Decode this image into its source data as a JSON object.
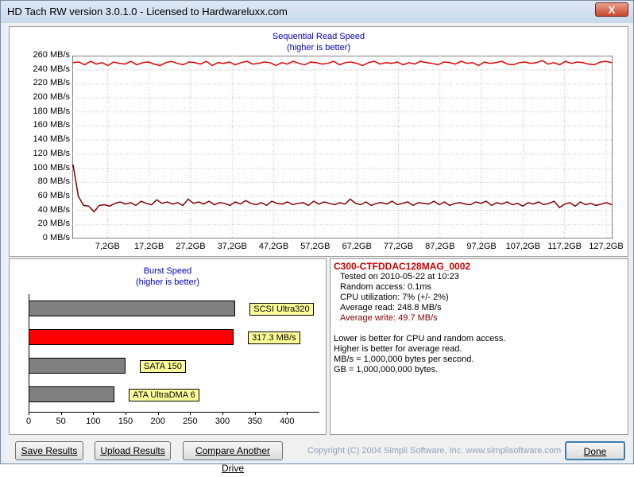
{
  "window": {
    "title": "HD Tach RW version 3.0.1.0 - Licensed to Hardwareluxx.com",
    "close_label": "X"
  },
  "seq_chart": {
    "title": "Sequential Read Speed",
    "subtitle": "(higher is better)",
    "y_ticks": [
      "260 MB/s",
      "240 MB/s",
      "220 MB/s",
      "200 MB/s",
      "180 MB/s",
      "160 MB/s",
      "140 MB/s",
      "120 MB/s",
      "100 MB/s",
      "80 MB/s",
      "60 MB/s",
      "40 MB/s",
      "20 MB/s",
      "0 MB/s"
    ],
    "x_ticks": [
      "7,2GB",
      "17,2GB",
      "27,2GB",
      "37,2GB",
      "47,2GB",
      "57,2GB",
      "67,2GB",
      "77,2GB",
      "87,2GB",
      "97,2GB",
      "107,2GB",
      "117,2GB",
      "127,2GB"
    ],
    "colors": {
      "read": "#e00000",
      "write": "#800000",
      "grid": "#c0c0c0"
    }
  },
  "chart_data": [
    {
      "type": "line",
      "title": "Sequential Read Speed",
      "subtitle": "(higher is better)",
      "xlabel": "",
      "ylabel": "",
      "ylim": [
        0,
        260
      ],
      "xlim": [
        0,
        130
      ],
      "series": [
        {
          "values": [
            250,
            251,
            247,
            252,
            248,
            250,
            246,
            251,
            249,
            248,
            252,
            247,
            250,
            251,
            248,
            246,
            250,
            252,
            249,
            247,
            251,
            250,
            248,
            252,
            246,
            250,
            249,
            251,
            247,
            250,
            252,
            248,
            249,
            251,
            250,
            246,
            250,
            248,
            252,
            249,
            247,
            251,
            250,
            248,
            249,
            252,
            247,
            250,
            251,
            249,
            246,
            250,
            252,
            248,
            250,
            249,
            251,
            247,
            250,
            248,
            252,
            250,
            249,
            247,
            251,
            250,
            248,
            252,
            249,
            250,
            246,
            251,
            249,
            250,
            252,
            248,
            247,
            250,
            251,
            249,
            250,
            253,
            248,
            250,
            247,
            252,
            249,
            251,
            250,
            248,
            247,
            251,
            252,
            250
          ]
        },
        {
          "values": [
            105,
            60,
            47,
            46,
            38,
            47,
            48,
            46,
            50,
            52,
            49,
            51,
            47,
            53,
            50,
            48,
            55,
            50,
            52,
            49,
            51,
            47,
            56,
            50,
            52,
            49,
            53,
            48,
            51,
            50,
            47,
            52,
            49,
            54,
            50,
            48,
            51,
            47,
            53,
            50,
            49,
            52,
            48,
            50,
            51,
            47,
            53,
            49,
            52,
            50,
            48,
            51,
            49,
            56,
            50,
            48,
            52,
            47,
            50,
            51,
            49,
            53,
            48,
            50,
            52,
            47,
            51,
            50,
            49,
            53,
            48,
            52,
            47,
            50,
            51,
            49,
            48,
            52,
            50,
            53,
            47,
            51,
            49,
            52,
            48,
            50,
            46,
            51,
            49,
            52,
            48,
            50,
            53,
            44,
            49,
            51,
            46,
            52,
            48,
            50,
            47,
            49,
            51,
            48
          ]
        }
      ]
    },
    {
      "type": "bar",
      "title": "Burst Speed",
      "subtitle": "(higher is better)",
      "categories": [
        "SCSI Ultra320",
        "317.3 MB/s",
        "SATA 150",
        "ATA UltraDMA 6"
      ],
      "values": [
        320,
        317.3,
        150,
        133
      ],
      "xlim": [
        0,
        450
      ],
      "x_ticks": [
        "0",
        "50",
        "100",
        "150",
        "200",
        "250",
        "300",
        "350",
        "400"
      ]
    }
  ],
  "burst": {
    "title": "Burst Speed",
    "subtitle": "(higher is better)",
    "bars": [
      {
        "label": "SCSI Ultra320",
        "value": 320,
        "color": "#808080"
      },
      {
        "label": "317.3 MB/s",
        "value": 317.3,
        "color": "#ff0000"
      },
      {
        "label": "SATA 150",
        "value": 150,
        "color": "#808080"
      },
      {
        "label": "ATA UltraDMA 6",
        "value": 133,
        "color": "#808080"
      }
    ],
    "ticks": [
      "0",
      "50",
      "100",
      "150",
      "200",
      "250",
      "300",
      "350",
      "400"
    ]
  },
  "info": {
    "drive_name": "C300-CTFDDAC128MAG_0002",
    "tested": "Tested on 2010-05-22 at 10:23",
    "random_access": "Random access: 0.1ms",
    "cpu": "CPU utilization: 7% (+/- 2%)",
    "avg_read": "Average read: 248.8 MB/s",
    "avg_write": "Average write: 49.7 MB/s",
    "note1": "Lower is better for CPU and random access.",
    "note2": "Higher is better for average read.",
    "note3": "MB/s = 1,000,000 bytes per second.",
    "note4": "GB = 1,000,000,000 bytes."
  },
  "buttons": {
    "save": "Save Results",
    "upload": "Upload Results",
    "compare": "Compare Another Drive",
    "done": "Done"
  },
  "copyright": "Copyright (C) 2004 Simpli Software, Inc. www.simplisoftware.com"
}
